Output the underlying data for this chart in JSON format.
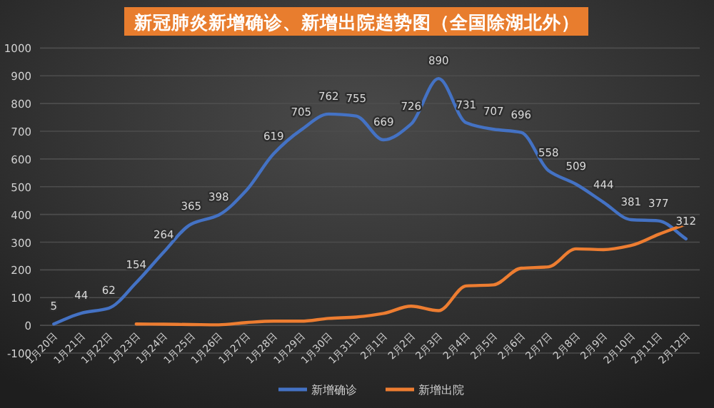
{
  "chart_data": {
    "type": "line",
    "title": "新冠肺炎新增确诊、新增出院趋势图（全国除湖北外）",
    "categories": [
      "1月20日",
      "1月21日",
      "1月22日",
      "1月23日",
      "1月24日",
      "1月25日",
      "1月26日",
      "1月27日",
      "1月28日",
      "1月29日",
      "1月30日",
      "1月31日",
      "2月1日",
      "2月2日",
      "2月3日",
      "2月4日",
      "2月5日",
      "2月6日",
      "2月7日",
      "2月8日",
      "2月9日",
      "2月10日",
      "2月11日",
      "2月12日"
    ],
    "series": [
      {
        "name": "新增确诊",
        "color": "#4472c4",
        "values": [
          5,
          44,
          62,
          154,
          264,
          365,
          398,
          486,
          619,
          705,
          762,
          755,
          669,
          726,
          890,
          731,
          707,
          696,
          558,
          509,
          444,
          381,
          377,
          312
        ],
        "value_labels": [
          "5",
          "44",
          "62",
          "154",
          "264",
          "365",
          "398",
          null,
          "619",
          "705",
          "762",
          "755",
          "669",
          "726",
          "890",
          "731",
          "707",
          "696",
          "558",
          "509",
          "444",
          "381",
          "377",
          "312"
        ]
      },
      {
        "name": "新增出院",
        "color": "#ed7d31",
        "values": [
          null,
          null,
          null,
          5,
          4,
          3,
          2,
          10,
          15,
          15,
          25,
          30,
          43,
          69,
          53,
          142,
          146,
          206,
          211,
          276,
          273,
          288,
          328,
          365
        ]
      }
    ],
    "ylim": [
      -100,
      1000
    ],
    "yticks": [
      -100,
      0,
      100,
      200,
      300,
      400,
      500,
      600,
      700,
      800,
      900,
      1000
    ],
    "grid": "y",
    "legend": "bottom"
  }
}
